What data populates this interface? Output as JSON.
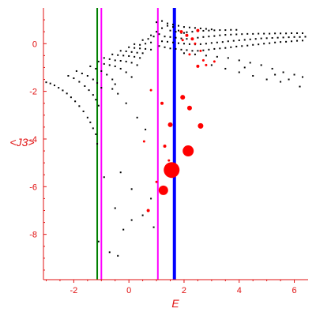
{
  "chart_data": {
    "type": "scatter",
    "xlabel": "E",
    "ylabel": "<J3>",
    "xlim": [
      -3.1,
      6.5
    ],
    "ylim": [
      -9.9,
      1.5
    ],
    "x_ticks": [
      -2,
      0,
      2,
      4,
      6
    ],
    "y_ticks": [
      0,
      -2,
      -4,
      -6,
      -8
    ],
    "grid": false,
    "colors": {
      "axis": "#e01010",
      "points": "#000000",
      "highlight": "#ff0000",
      "line_green": "#008000",
      "line_magenta": "#ff00ff",
      "line_blue": "#0000ff"
    },
    "vertical_lines": [
      {
        "x": -1.15,
        "color": "#008000",
        "width": 2
      },
      {
        "x": -1.0,
        "color": "#ff00ff",
        "width": 2
      },
      {
        "x": 1.05,
        "color": "#ff00ff",
        "width": 2
      },
      {
        "x": 1.65,
        "color": "#0000ff",
        "width": 4
      }
    ],
    "black_points": [
      [
        -3.0,
        -1.62
      ],
      [
        -2.85,
        -1.67
      ],
      [
        -2.7,
        -1.75
      ],
      [
        -2.55,
        -1.85
      ],
      [
        -2.4,
        -1.96
      ],
      [
        -2.25,
        -2.09
      ],
      [
        -2.1,
        -2.25
      ],
      [
        -1.95,
        -2.42
      ],
      [
        -1.8,
        -2.62
      ],
      [
        -1.65,
        -2.84
      ],
      [
        -1.5,
        -3.1
      ],
      [
        -1.4,
        -3.3
      ],
      [
        -1.3,
        -3.55
      ],
      [
        -2.2,
        -1.35
      ],
      [
        -2.0,
        -1.45
      ],
      [
        -1.8,
        -1.6
      ],
      [
        -1.6,
        -1.78
      ],
      [
        -1.45,
        -1.95
      ],
      [
        -1.3,
        -2.15
      ],
      [
        -1.2,
        -2.35
      ],
      [
        -1.1,
        -2.6
      ],
      [
        -1.9,
        -1.15
      ],
      [
        -1.7,
        -1.25
      ],
      [
        -1.5,
        -1.35
      ],
      [
        -1.3,
        -1.5
      ],
      [
        -1.15,
        -1.65
      ],
      [
        -1.0,
        -1.85
      ],
      [
        -1.4,
        -0.95
      ],
      [
        -1.2,
        -1.05
      ],
      [
        -1.0,
        -1.15
      ],
      [
        -0.8,
        -1.3
      ],
      [
        -0.6,
        -1.5
      ],
      [
        -0.5,
        -1.7
      ],
      [
        -1.1,
        -0.75
      ],
      [
        -0.9,
        -0.85
      ],
      [
        -0.7,
        -0.9
      ],
      [
        -0.5,
        -0.95
      ],
      [
        -0.3,
        -1.05
      ],
      [
        -0.1,
        -1.2
      ],
      [
        0.1,
        -1.4
      ],
      [
        -0.9,
        -0.6
      ],
      [
        -0.7,
        -0.65
      ],
      [
        -0.5,
        -0.7
      ],
      [
        -0.3,
        -0.72
      ],
      [
        -0.1,
        -0.75
      ],
      [
        0.1,
        -0.8
      ],
      [
        0.3,
        -0.9
      ],
      [
        -0.6,
        -0.45
      ],
      [
        -0.4,
        -0.48
      ],
      [
        -0.2,
        -0.5
      ],
      [
        0.0,
        -0.52
      ],
      [
        0.2,
        -0.55
      ],
      [
        0.4,
        -0.6
      ],
      [
        -0.3,
        -0.3
      ],
      [
        -0.1,
        -0.32
      ],
      [
        0.1,
        -0.35
      ],
      [
        0.3,
        -0.38
      ],
      [
        0.5,
        -0.4
      ],
      [
        0.0,
        -0.15
      ],
      [
        0.2,
        -0.18
      ],
      [
        0.4,
        -0.2
      ],
      [
        0.6,
        -0.22
      ],
      [
        0.8,
        -0.25
      ],
      [
        0.2,
        -0.02
      ],
      [
        0.4,
        -0.05
      ],
      [
        0.6,
        0.0
      ],
      [
        0.8,
        0.05
      ],
      [
        0.5,
        0.15
      ],
      [
        0.7,
        0.2
      ],
      [
        0.9,
        0.3
      ],
      [
        1.1,
        0.4
      ],
      [
        0.8,
        0.35
      ],
      [
        1.0,
        0.5
      ],
      [
        1.2,
        0.65
      ],
      [
        1.4,
        0.75
      ],
      [
        1.6,
        0.8
      ],
      [
        1.0,
        0.9
      ],
      [
        1.2,
        0.95
      ],
      [
        1.4,
        0.85
      ],
      [
        1.6,
        0.7
      ],
      [
        1.8,
        0.55
      ],
      [
        2.0,
        0.45
      ],
      [
        1.1,
        -0.1
      ],
      [
        1.3,
        -0.15
      ],
      [
        1.5,
        -0.2
      ],
      [
        1.7,
        -0.22
      ],
      [
        1.9,
        -0.25
      ],
      [
        2.1,
        -0.27
      ],
      [
        2.3,
        -0.3
      ],
      [
        2.5,
        -0.3
      ],
      [
        2.7,
        -0.28
      ],
      [
        2.9,
        -0.25
      ],
      [
        3.1,
        -0.22
      ],
      [
        3.3,
        -0.2
      ],
      [
        3.5,
        -0.18
      ],
      [
        3.7,
        -0.15
      ],
      [
        3.9,
        -0.12
      ],
      [
        4.1,
        -0.1
      ],
      [
        4.3,
        -0.08
      ],
      [
        4.5,
        -0.05
      ],
      [
        4.7,
        -0.03
      ],
      [
        4.9,
        0.0
      ],
      [
        5.1,
        0.02
      ],
      [
        5.3,
        0.05
      ],
      [
        5.5,
        0.07
      ],
      [
        5.7,
        0.08
      ],
      [
        5.9,
        0.1
      ],
      [
        6.1,
        0.12
      ],
      [
        6.3,
        0.13
      ],
      [
        1.2,
        0.1
      ],
      [
        1.4,
        0.08
      ],
      [
        1.6,
        0.05
      ],
      [
        1.8,
        0.02
      ],
      [
        2.0,
        0.0
      ],
      [
        2.2,
        -0.02
      ],
      [
        2.4,
        -0.03
      ],
      [
        2.6,
        -0.02
      ],
      [
        2.8,
        0.0
      ],
      [
        3.0,
        0.03
      ],
      [
        3.2,
        0.05
      ],
      [
        3.4,
        0.07
      ],
      [
        3.6,
        0.1
      ],
      [
        3.8,
        0.12
      ],
      [
        4.0,
        0.14
      ],
      [
        4.2,
        0.16
      ],
      [
        4.4,
        0.18
      ],
      [
        4.6,
        0.2
      ],
      [
        4.8,
        0.22
      ],
      [
        5.0,
        0.23
      ],
      [
        5.2,
        0.24
      ],
      [
        5.4,
        0.25
      ],
      [
        5.6,
        0.26
      ],
      [
        5.8,
        0.27
      ],
      [
        6.0,
        0.28
      ],
      [
        6.2,
        0.28
      ],
      [
        6.4,
        0.29
      ],
      [
        1.3,
        0.3
      ],
      [
        1.5,
        0.28
      ],
      [
        1.7,
        0.25
      ],
      [
        1.9,
        0.22
      ],
      [
        2.1,
        0.2
      ],
      [
        2.3,
        0.22
      ],
      [
        2.5,
        0.25
      ],
      [
        2.7,
        0.28
      ],
      [
        2.9,
        0.3
      ],
      [
        3.1,
        0.32
      ],
      [
        3.3,
        0.35
      ],
      [
        3.5,
        0.37
      ],
      [
        3.7,
        0.38
      ],
      [
        3.9,
        0.39
      ],
      [
        4.1,
        0.4
      ],
      [
        4.3,
        0.41
      ],
      [
        4.5,
        0.41
      ],
      [
        4.7,
        0.42
      ],
      [
        4.9,
        0.42
      ],
      [
        5.1,
        0.42
      ],
      [
        5.3,
        0.43
      ],
      [
        5.5,
        0.43
      ],
      [
        5.7,
        0.43
      ],
      [
        5.9,
        0.44
      ],
      [
        6.1,
        0.44
      ],
      [
        6.3,
        0.44
      ],
      [
        1.5,
        0.55
      ],
      [
        1.7,
        0.5
      ],
      [
        1.9,
        0.45
      ],
      [
        2.1,
        0.48
      ],
      [
        2.3,
        0.5
      ],
      [
        2.5,
        0.52
      ],
      [
        2.7,
        0.54
      ],
      [
        2.9,
        0.55
      ],
      [
        3.1,
        0.56
      ],
      [
        3.3,
        0.57
      ],
      [
        3.5,
        0.57
      ],
      [
        3.7,
        0.58
      ],
      [
        3.9,
        0.58
      ],
      [
        1.8,
        0.75
      ],
      [
        2.0,
        0.7
      ],
      [
        2.2,
        0.68
      ],
      [
        2.4,
        0.66
      ],
      [
        2.6,
        0.64
      ],
      [
        2.8,
        0.62
      ],
      [
        3.0,
        0.6
      ],
      [
        2.0,
        -0.4
      ],
      [
        2.4,
        -0.45
      ],
      [
        2.8,
        -0.5
      ],
      [
        3.2,
        -0.55
      ],
      [
        3.6,
        -0.6
      ],
      [
        4.0,
        -0.7
      ],
      [
        4.4,
        -0.8
      ],
      [
        4.8,
        -0.9
      ],
      [
        5.2,
        -1.05
      ],
      [
        5.6,
        -1.2
      ],
      [
        6.0,
        -1.3
      ],
      [
        6.3,
        -1.4
      ],
      [
        3.0,
        -0.9
      ],
      [
        3.5,
        -1.05
      ],
      [
        4.0,
        -1.2
      ],
      [
        4.5,
        -1.35
      ],
      [
        5.0,
        -1.5
      ],
      [
        5.5,
        -1.6
      ],
      [
        4.2,
        -1.0
      ],
      [
        5.3,
        -1.3
      ],
      [
        6.2,
        -1.8
      ],
      [
        5.8,
        -1.5
      ],
      [
        -0.6,
        -1.9
      ],
      [
        -0.4,
        -2.1
      ],
      [
        -0.1,
        -2.5
      ],
      [
        0.3,
        -3.1
      ],
      [
        0.6,
        -3.6
      ],
      [
        -1.2,
        -3.8
      ],
      [
        -1.15,
        -4.2
      ],
      [
        -0.9,
        -5.6
      ],
      [
        -0.3,
        -5.4
      ],
      [
        0.1,
        -6.1
      ],
      [
        -0.5,
        -6.9
      ],
      [
        0.1,
        -7.4
      ],
      [
        -0.2,
        -7.8
      ],
      [
        -1.1,
        -8.3
      ],
      [
        -0.7,
        -8.75
      ],
      [
        -0.4,
        -8.9
      ],
      [
        0.8,
        -6.5
      ],
      [
        0.9,
        -7.7
      ],
      [
        0.5,
        -7.2
      ]
    ],
    "red_points": [
      [
        1.55,
        -5.3,
        10
      ],
      [
        1.25,
        -6.15,
        6
      ],
      [
        2.15,
        -4.5,
        7
      ],
      [
        2.6,
        -3.45,
        3.5
      ],
      [
        1.5,
        -3.4,
        3
      ],
      [
        2.2,
        -2.7,
        3
      ],
      [
        1.95,
        -2.25,
        3
      ],
      [
        1.2,
        -2.5,
        2
      ],
      [
        0.8,
        -1.95,
        1.5
      ],
      [
        1.3,
        -4.3,
        2
      ],
      [
        0.55,
        -4.1,
        1.5
      ],
      [
        0.7,
        -7.0,
        2
      ],
      [
        1.0,
        -5.8,
        1.5
      ],
      [
        1.45,
        -4.9,
        1.5
      ],
      [
        1.9,
        0.5,
        2
      ],
      [
        2.1,
        0.35,
        2
      ],
      [
        2.3,
        0.2,
        2
      ],
      [
        2.5,
        0.55,
        2
      ],
      [
        2.4,
        0.0,
        1.5
      ],
      [
        2.6,
        -0.3,
        1.5
      ],
      [
        2.7,
        -0.7,
        1.5
      ],
      [
        2.8,
        -0.9,
        1.5
      ],
      [
        2.5,
        -0.95,
        2
      ],
      [
        3.1,
        -0.75,
        1.5
      ],
      [
        2.2,
        -0.45,
        1.5
      ],
      [
        1.95,
        0.15,
        1.5
      ]
    ]
  }
}
